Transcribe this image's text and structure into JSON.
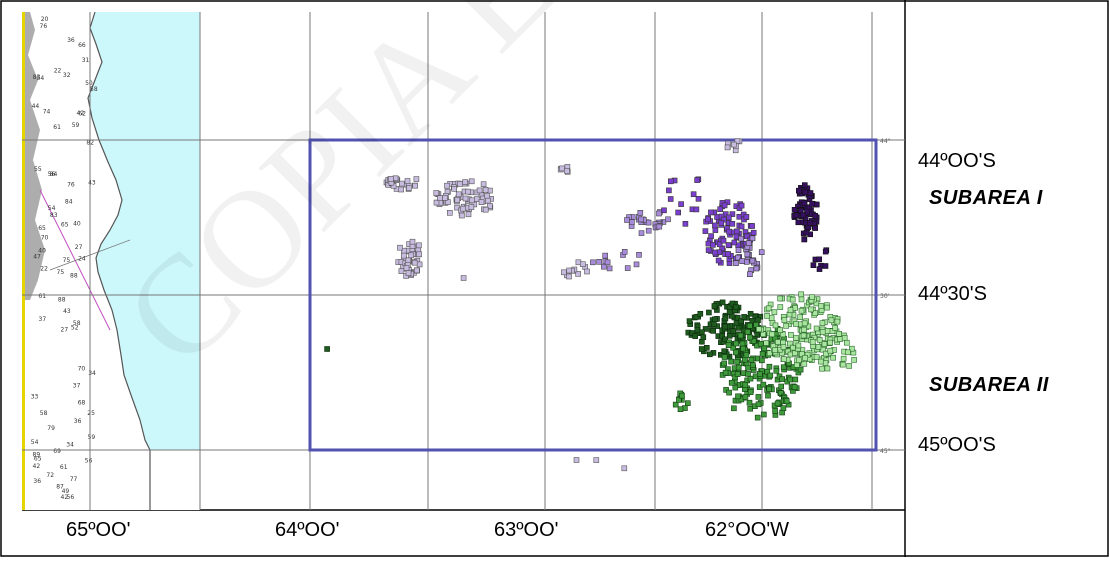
{
  "map": {
    "latitude_labels": [
      "44ºOO'S",
      "44º30'S",
      "45ºOO'S"
    ],
    "subareas": [
      "SUBAREA I",
      "SUBAREA II"
    ],
    "longitude_labels": [
      "65ºOO'",
      "64ºOO'",
      "63ºOO'",
      "62°OO'W"
    ],
    "watermark": "COPIA ELECTR",
    "colors": {
      "sea": "#ccf7fb",
      "study_box": "#5252b0",
      "lavender": "#c7bbe0",
      "light_purple": "#a98bdc",
      "purple": "#7b3fcf",
      "dark_purple": "#36105f",
      "dark_green": "#1f5b1f",
      "mid_green": "#3f9a3c",
      "light_green": "#a9e4a1"
    }
  }
}
